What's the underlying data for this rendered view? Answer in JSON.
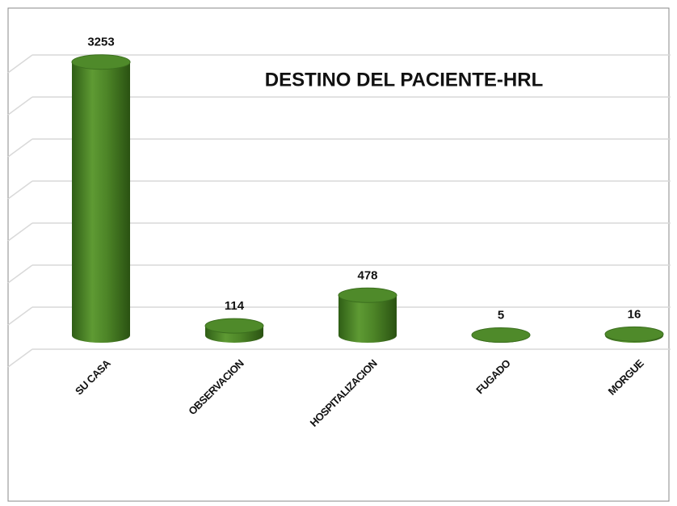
{
  "chart_data": {
    "type": "bar3d",
    "title": "DESTINO DEL PACIENTE-HRL",
    "categories": [
      "SU CASA",
      "OBSERVACION",
      "HOSPITALIZACION",
      "FUGADO",
      "MORGUE"
    ],
    "values": [
      3253,
      114,
      478,
      5,
      16
    ],
    "color": "#4f8a2a",
    "ylim": [
      0,
      3500
    ],
    "yticks": [
      0,
      500,
      1000,
      1500,
      2000,
      2500,
      3000,
      3500
    ],
    "grid": true
  }
}
